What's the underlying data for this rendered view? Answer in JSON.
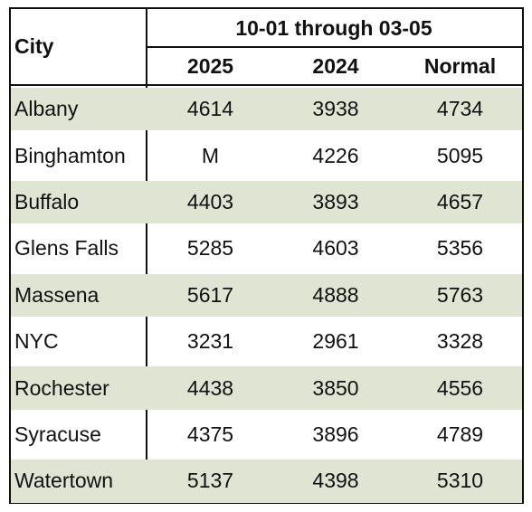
{
  "table": {
    "header": {
      "city": "City",
      "period": "10-01 through 03-05",
      "columns": [
        "2025",
        "2024",
        "Normal"
      ]
    },
    "rows": [
      [
        "Albany",
        4614,
        3938,
        4734
      ],
      [
        "Binghamton",
        "M",
        4226,
        5095
      ],
      [
        "Buffalo",
        4403,
        3893,
        4657
      ],
      [
        "Glens Falls",
        5285,
        4603,
        5356
      ],
      [
        "Massena",
        5617,
        4888,
        5763
      ],
      [
        "NYC",
        3231,
        2961,
        3328
      ],
      [
        "Rochester",
        4438,
        3850,
        4556
      ],
      [
        "Syracuse",
        4375,
        3896,
        4789
      ],
      [
        "Watertown",
        5137,
        4398,
        5310
      ]
    ]
  }
}
